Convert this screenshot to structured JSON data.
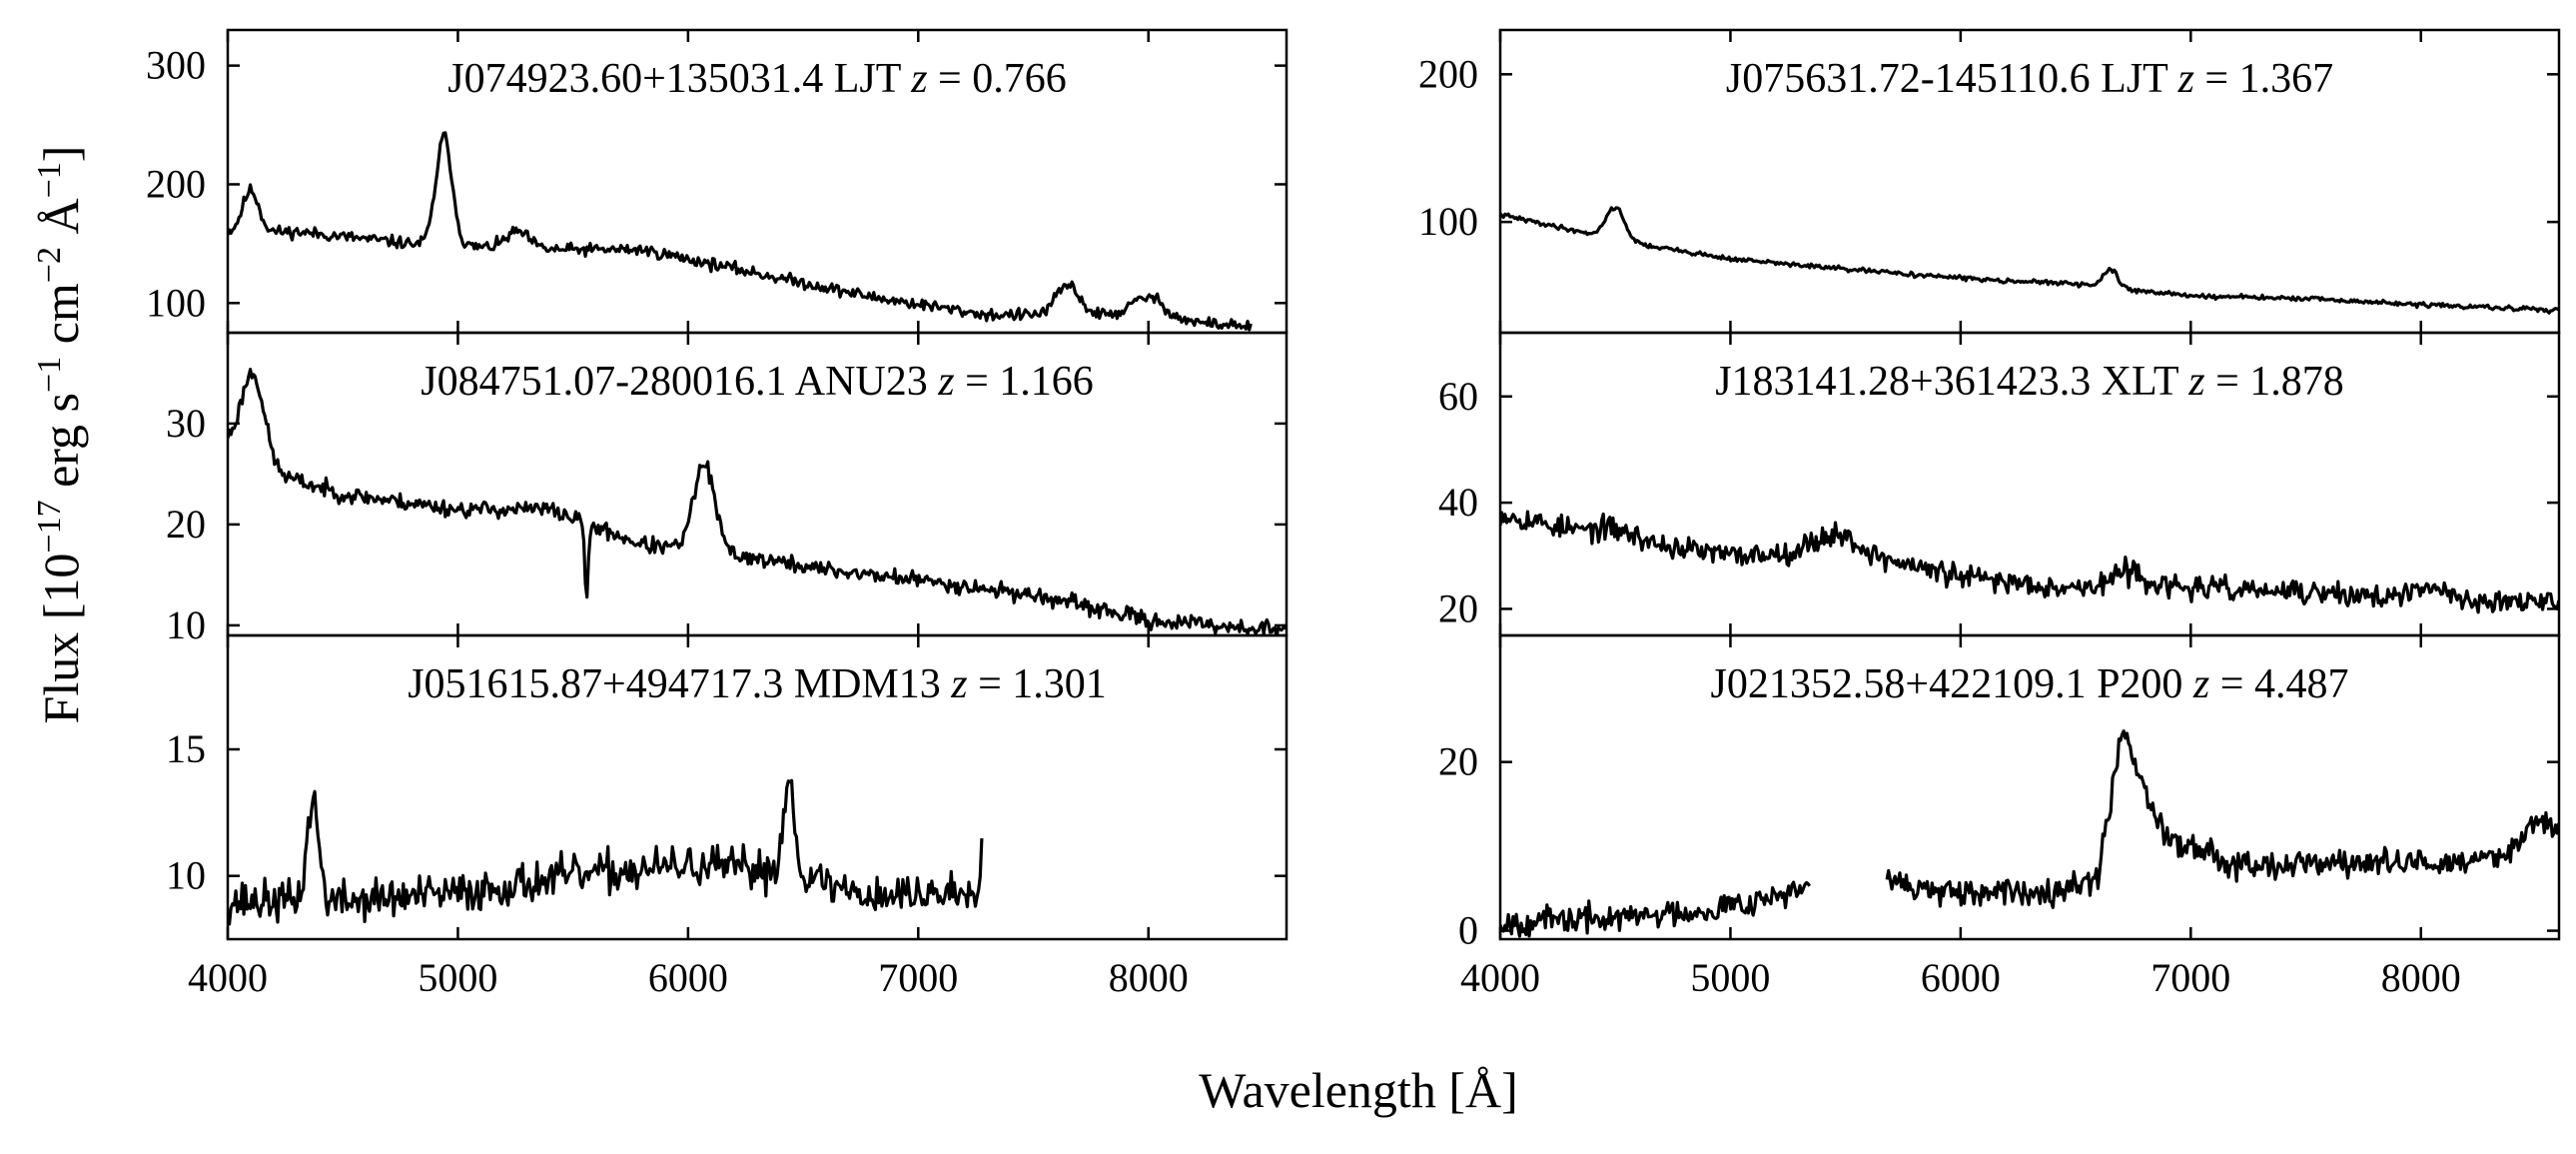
{
  "figure": {
    "xlabel": "Wavelength [Å]",
    "ylabel_parts": [
      "Flux [10",
      "−17",
      " erg s",
      "−1",
      " cm",
      "−2",
      " Å",
      "−1",
      "]"
    ]
  },
  "chart_data": [
    {
      "type": "line",
      "id": "p0",
      "title_name": "J074923.60+135031.4 LJT",
      "z_symbol": "z",
      "z_value": "= 0.766",
      "xlim": [
        4000,
        8600
      ],
      "ylim": [
        75,
        330
      ],
      "yticks": [
        100,
        200,
        300
      ],
      "xticks": [
        4000,
        5000,
        6000,
        7000,
        8000
      ],
      "show_xtick_labels": false,
      "spectrum_range": [
        4000,
        8450
      ],
      "gaps": [],
      "continuum": [
        [
          4000,
          160
        ],
        [
          4300,
          160
        ],
        [
          4800,
          150
        ],
        [
          5300,
          145
        ],
        [
          5800,
          145
        ],
        [
          6300,
          125
        ],
        [
          6800,
          105
        ],
        [
          7300,
          90
        ],
        [
          7800,
          90
        ],
        [
          8450,
          80
        ]
      ],
      "lines": [
        [
          4100,
          195,
          35
        ],
        [
          4940,
          240,
          35
        ],
        [
          5260,
          160,
          50
        ],
        [
          7650,
          115,
          50
        ],
        [
          8000,
          105,
          70
        ]
      ],
      "noise": 5,
      "seed": 11
    },
    {
      "type": "line",
      "id": "p1",
      "title_name": "J084751.07-280016.1 ANU23",
      "z_symbol": "z",
      "z_value": "= 1.166",
      "xlim": [
        4000,
        8600
      ],
      "ylim": [
        9,
        39
      ],
      "yticks": [
        10,
        20,
        30
      ],
      "xticks": [
        4000,
        5000,
        6000,
        7000,
        8000
      ],
      "show_xtick_labels": false,
      "spectrum_range": [
        4000,
        8600
      ],
      "gaps": [],
      "continuum": [
        [
          4000,
          28
        ],
        [
          4200,
          25
        ],
        [
          4500,
          23
        ],
        [
          5000,
          21.5
        ],
        [
          5400,
          21.5
        ],
        [
          5800,
          18
        ],
        [
          6200,
          17
        ],
        [
          6600,
          15.5
        ],
        [
          7000,
          14.5
        ],
        [
          7500,
          13
        ],
        [
          8000,
          10.5
        ],
        [
          8600,
          9.5
        ]
      ],
      "lines": [
        [
          4110,
          35,
          50
        ],
        [
          6070,
          26,
          45
        ],
        [
          5560,
          13,
          8
        ]
      ],
      "noise": 0.8,
      "seed": 23
    },
    {
      "type": "line",
      "id": "p2",
      "title_name": "J051615.87+494717.3 MDM13",
      "z_symbol": "z",
      "z_value": "= 1.301",
      "xlim": [
        4000,
        8600
      ],
      "ylim": [
        7.5,
        19.5
      ],
      "yticks": [
        10,
        15
      ],
      "xticks": [
        4000,
        5000,
        6000,
        7000,
        8000
      ],
      "show_xtick_labels": true,
      "spectrum_range": [
        4000,
        7280
      ],
      "gaps": [],
      "continuum": [
        [
          4000,
          9
        ],
        [
          4500,
          9
        ],
        [
          5000,
          9.3
        ],
        [
          5500,
          10
        ],
        [
          6000,
          10.4
        ],
        [
          6400,
          10.2
        ],
        [
          6800,
          9.2
        ],
        [
          7280,
          9.4
        ]
      ],
      "lines": [
        [
          4370,
          13,
          25
        ],
        [
          6440,
          13.7,
          25
        ],
        [
          7280,
          12.3,
          8
        ]
      ],
      "noise": 0.8,
      "seed": 37
    },
    {
      "type": "line",
      "id": "p3",
      "title_name": "J075631.72-145110.6 LJT",
      "z_symbol": "z",
      "z_value": "= 1.367",
      "xlim": [
        4000,
        8600
      ],
      "ylim": [
        25,
        230
      ],
      "yticks": [
        100,
        200
      ],
      "xticks": [
        4000,
        5000,
        6000,
        7000,
        8000
      ],
      "show_xtick_labels": false,
      "spectrum_range": [
        4000,
        8600
      ],
      "gaps": [],
      "continuum": [
        [
          4000,
          105
        ],
        [
          4300,
          95
        ],
        [
          4600,
          85
        ],
        [
          5000,
          75
        ],
        [
          5500,
          68
        ],
        [
          6000,
          62
        ],
        [
          6500,
          58
        ],
        [
          7000,
          50
        ],
        [
          7500,
          48
        ],
        [
          8000,
          44
        ],
        [
          8600,
          40
        ]
      ],
      "lines": [
        [
          4500,
          110,
          40
        ],
        [
          6650,
          68,
          30
        ]
      ],
      "noise": 1.5,
      "seed": 41
    },
    {
      "type": "line",
      "id": "p4",
      "title_name": "J183141.28+361423.3 XLT",
      "z_symbol": "z",
      "z_value": "= 1.878",
      "xlim": [
        4000,
        8600
      ],
      "ylim": [
        15,
        72
      ],
      "yticks": [
        20,
        40,
        60
      ],
      "xticks": [
        4000,
        5000,
        6000,
        7000,
        8000
      ],
      "show_xtick_labels": false,
      "spectrum_range": [
        4000,
        8600
      ],
      "gaps": [],
      "continuum": [
        [
          4000,
          38
        ],
        [
          4300,
          35
        ],
        [
          4700,
          32
        ],
        [
          5000,
          30
        ],
        [
          5500,
          31
        ],
        [
          6000,
          26
        ],
        [
          6500,
          24
        ],
        [
          7000,
          24
        ],
        [
          7500,
          23
        ],
        [
          8000,
          22
        ],
        [
          8600,
          21
        ]
      ],
      "lines": [
        [
          4500,
          35,
          80
        ],
        [
          5450,
          34,
          90
        ],
        [
          6730,
          27,
          70
        ],
        [
          8050,
          24,
          60
        ]
      ],
      "noise": 2.2,
      "seed": 53
    },
    {
      "type": "line",
      "id": "p5",
      "title_name": "J021352.58+422109.1 P200",
      "z_symbol": "z",
      "z_value": "= 4.487",
      "xlim": [
        4000,
        8600
      ],
      "ylim": [
        -1,
        35
      ],
      "yticks": [
        0,
        20
      ],
      "xticks": [
        4000,
        5000,
        6000,
        7000,
        8000
      ],
      "show_xtick_labels": true,
      "spectrum_range": [
        4000,
        8600
      ],
      "gaps": [
        [
          5350,
          5680
        ]
      ],
      "continuum": [
        [
          4000,
          1
        ],
        [
          4500,
          1.5
        ],
        [
          4900,
          2.5
        ],
        [
          5350,
          5
        ],
        [
          5680,
          6
        ],
        [
          6000,
          4
        ],
        [
          6400,
          5
        ],
        [
          6600,
          6
        ],
        [
          6700,
          22
        ],
        [
          6900,
          11
        ],
        [
          7200,
          8
        ],
        [
          7700,
          8
        ],
        [
          8200,
          8
        ],
        [
          8500,
          10
        ],
        [
          8600,
          8
        ]
      ],
      "lines": [
        [
          6700,
          24,
          60
        ],
        [
          8550,
          13,
          80
        ]
      ],
      "noise": 1.6,
      "seed": 67
    }
  ]
}
